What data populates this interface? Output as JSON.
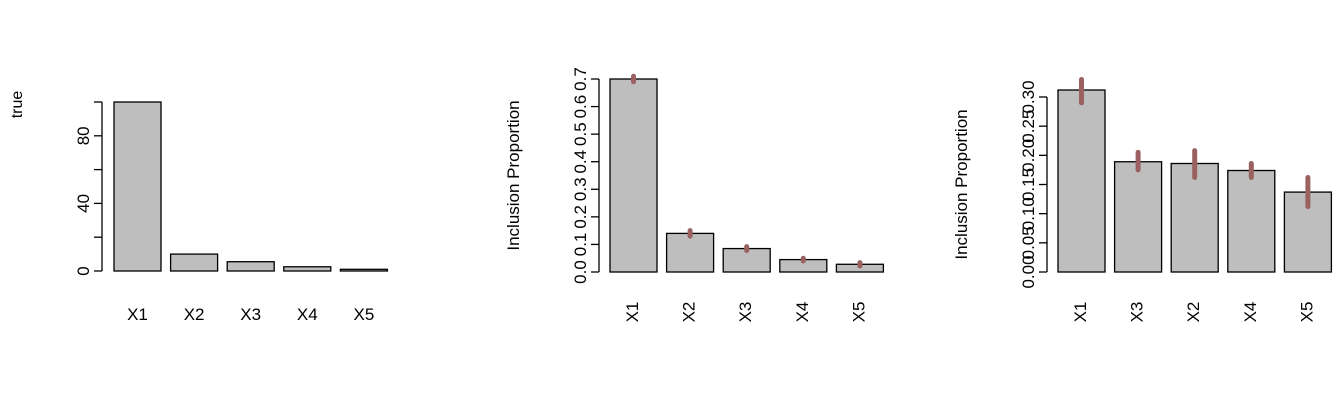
{
  "chart_data": [
    {
      "type": "bar",
      "title": "",
      "xlabel": "",
      "ylabel": "true",
      "categories": [
        "X1",
        "X2",
        "X3",
        "X4",
        "X5"
      ],
      "values": [
        100,
        10,
        5.5,
        2.5,
        1
      ],
      "ylim": [
        0,
        100
      ],
      "yticks": [
        0,
        20,
        40,
        60,
        80,
        100
      ],
      "ytick_labels": [
        "0",
        "",
        "40",
        "",
        "80",
        ""
      ],
      "x_label_orientation": "horizontal",
      "bar_color": "#bebebe",
      "grid": false
    },
    {
      "type": "bar",
      "title": "",
      "xlabel": "",
      "ylabel": "Inclusion Proportion",
      "categories": [
        "X1",
        "X2",
        "X3",
        "X4",
        "X5"
      ],
      "values": [
        0.7,
        0.14,
        0.085,
        0.045,
        0.028
      ],
      "error_ranges": [
        [
          0.69,
          0.71
        ],
        [
          0.13,
          0.15
        ],
        [
          0.078,
          0.092
        ],
        [
          0.04,
          0.05
        ],
        [
          0.022,
          0.034
        ]
      ],
      "ylim": [
        0,
        0.7
      ],
      "yticks": [
        0,
        0.1,
        0.2,
        0.3,
        0.4,
        0.5,
        0.6,
        0.7
      ],
      "ytick_labels": [
        "0.0",
        "0.1",
        "0.2",
        "0.3",
        "0.4",
        "0.5",
        "0.6",
        "0.7"
      ],
      "x_label_orientation": "vertical",
      "bar_color": "#bebebe",
      "error_color": "#9b6060",
      "grid": false
    },
    {
      "type": "bar",
      "title": "",
      "xlabel": "",
      "ylabel": "Inclusion Proportion",
      "categories": [
        "X1",
        "X3",
        "X2",
        "X4",
        "X5"
      ],
      "values": [
        0.312,
        0.189,
        0.186,
        0.174,
        0.137
      ],
      "error_ranges": [
        [
          0.29,
          0.33
        ],
        [
          0.175,
          0.205
        ],
        [
          0.162,
          0.208
        ],
        [
          0.162,
          0.186
        ],
        [
          0.112,
          0.162
        ]
      ],
      "ylim": [
        0,
        0.3
      ],
      "yticks": [
        0,
        0.05,
        0.1,
        0.15,
        0.2,
        0.25,
        0.3
      ],
      "ytick_labels": [
        "0.00",
        "0.05",
        "0.10",
        "0.15",
        "0.20",
        "0.25",
        "0.30"
      ],
      "x_label_orientation": "vertical",
      "bar_color": "#bebebe",
      "error_color": "#9b6060",
      "grid": false
    }
  ]
}
